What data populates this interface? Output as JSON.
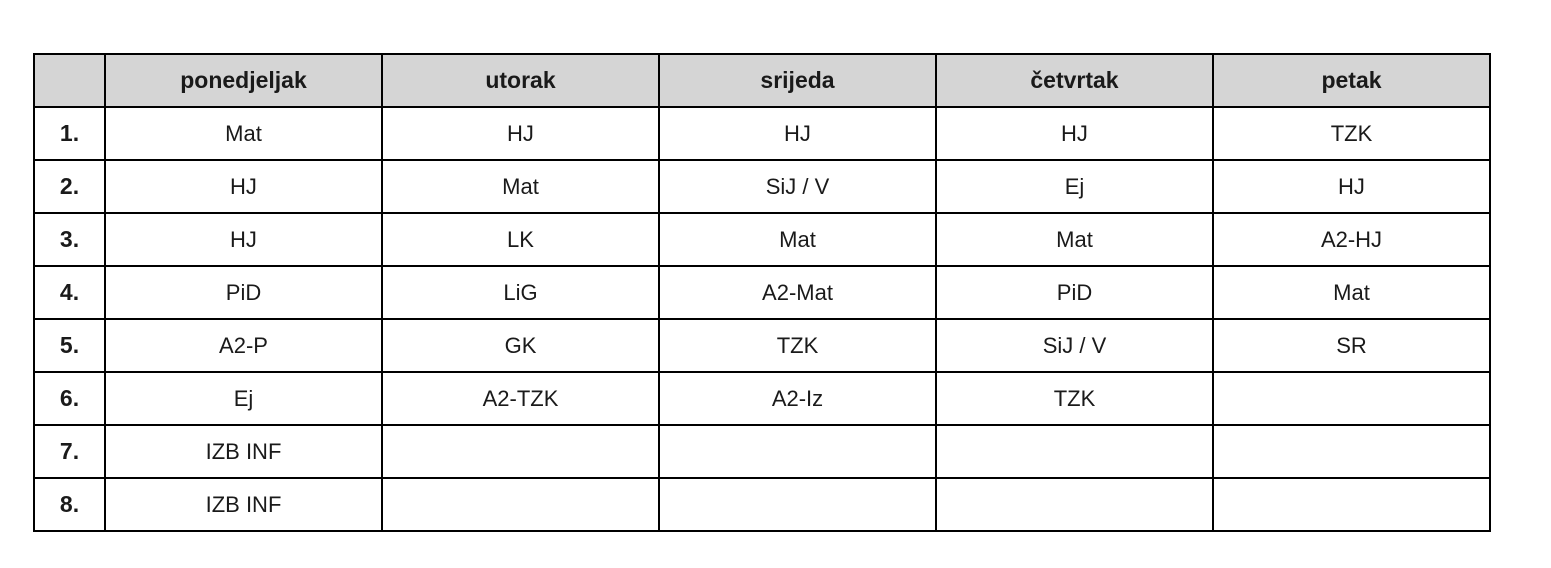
{
  "table": {
    "corner_label": "",
    "days": [
      "ponedjeljak",
      "utorak",
      "srijeda",
      "četvrtak",
      "petak"
    ],
    "rows": [
      {
        "num": "1.",
        "cells": [
          "Mat",
          "HJ",
          "HJ",
          "HJ",
          "TZK"
        ]
      },
      {
        "num": "2.",
        "cells": [
          "HJ",
          "Mat",
          "SiJ / V",
          "Ej",
          "HJ"
        ]
      },
      {
        "num": "3.",
        "cells": [
          "HJ",
          "LK",
          "Mat",
          "Mat",
          "A2-HJ"
        ]
      },
      {
        "num": "4.",
        "cells": [
          "PiD",
          "LiG",
          "A2-Mat",
          "PiD",
          "Mat"
        ]
      },
      {
        "num": "5.",
        "cells": [
          "A2-P",
          "GK",
          "TZK",
          "SiJ / V",
          "SR"
        ]
      },
      {
        "num": "6.",
        "cells": [
          "Ej",
          "A2-TZK",
          "A2-Iz",
          "TZK",
          ""
        ]
      },
      {
        "num": "7.",
        "cells": [
          "IZB INF",
          "",
          "",
          "",
          ""
        ]
      },
      {
        "num": "8.",
        "cells": [
          "IZB INF",
          "",
          "",
          "",
          ""
        ]
      }
    ],
    "colors": {
      "header_bg": "#d5d5d5",
      "border": "#000000",
      "cell_bg": "#ffffff",
      "text": "#1a1a1a"
    }
  }
}
